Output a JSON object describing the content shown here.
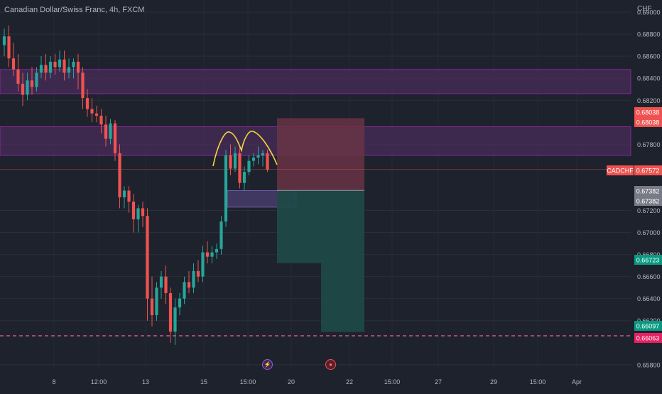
{
  "header": {
    "title": "Canadian Dollar/Swiss Franc, 4h, FXCM",
    "currency": "CHF"
  },
  "colors": {
    "background": "#1e222d",
    "bull": "#26a69a",
    "bear": "#ef5350",
    "zone_fill": "#4a2c5a",
    "zone_border": "#9c27b0",
    "pattern": "#f5d33f",
    "sl_fill": "#6b3446",
    "tp_fill": "#1e4a47"
  },
  "icons": {
    "event_1": "lightning-icon",
    "event_2": "flag-icon"
  },
  "chart_data": {
    "type": "candlestick",
    "title": "Canadian Dollar/Swiss Franc, 4h, FXCM",
    "ylabel": "CHF",
    "ylim": [
      0.6576,
      0.6911
    ],
    "y_ticks": [
      "0.69000",
      "0.68800",
      "0.68600",
      "0.68400",
      "0.68200",
      "0.67800",
      "0.67200",
      "0.67000",
      "0.66800",
      "0.66600",
      "0.66400",
      "0.66200",
      "0.65800"
    ],
    "x_ticks": [
      "8",
      "12:00",
      "13",
      "15",
      "15:00",
      "20",
      "22",
      "15:00",
      "27",
      "29",
      "15:00",
      "Apr"
    ],
    "price_labels": [
      {
        "value": "0.68038",
        "kind": "red"
      },
      {
        "value": "0.68038",
        "kind": "red"
      },
      {
        "value": "CADCHF",
        "kind": "red-tag"
      },
      {
        "value": "0.67572",
        "kind": "red"
      },
      {
        "value": "0.67382",
        "kind": "gray"
      },
      {
        "value": "0.67382",
        "kind": "gray"
      },
      {
        "value": "0.66723",
        "kind": "green"
      },
      {
        "value": "0.66097",
        "kind": "green"
      },
      {
        "value": "0.66063",
        "kind": "pink"
      }
    ],
    "symbol": "CADCHF",
    "last_price": 0.67572,
    "stop_loss": 0.68038,
    "entry": 0.67382,
    "partial_target": 0.66723,
    "target": 0.66097,
    "support_line": 0.66063,
    "zones": [
      {
        "from": 0.6826,
        "to": 0.6848
      },
      {
        "from": 0.677,
        "to": 0.6796
      },
      {
        "from": 0.6723,
        "to": 0.6738
      }
    ],
    "candles": [
      [
        0.687,
        0.6885,
        0.686,
        0.6878
      ],
      [
        0.6878,
        0.6888,
        0.685,
        0.6858
      ],
      [
        0.6858,
        0.6872,
        0.6842,
        0.6848
      ],
      [
        0.6848,
        0.6862,
        0.6828,
        0.6835
      ],
      [
        0.6835,
        0.6845,
        0.6815,
        0.6825
      ],
      [
        0.6825,
        0.6845,
        0.682,
        0.6838
      ],
      [
        0.6838,
        0.685,
        0.6825,
        0.6832
      ],
      [
        0.6832,
        0.685,
        0.6828,
        0.6845
      ],
      [
        0.6845,
        0.686,
        0.684,
        0.6852
      ],
      [
        0.6852,
        0.6862,
        0.6838,
        0.6845
      ],
      [
        0.6845,
        0.686,
        0.684,
        0.6855
      ],
      [
        0.6855,
        0.6862,
        0.6843,
        0.685
      ],
      [
        0.685,
        0.6865,
        0.6846,
        0.6857
      ],
      [
        0.6857,
        0.6865,
        0.6838,
        0.6845
      ],
      [
        0.6845,
        0.6858,
        0.684,
        0.685
      ],
      [
        0.685,
        0.6858,
        0.684,
        0.6855
      ],
      [
        0.6855,
        0.6862,
        0.683,
        0.6845
      ],
      [
        0.6845,
        0.685,
        0.6812,
        0.6822
      ],
      [
        0.6822,
        0.683,
        0.6805,
        0.6812
      ],
      [
        0.6812,
        0.6822,
        0.68,
        0.6808
      ],
      [
        0.6808,
        0.6815,
        0.68,
        0.6806
      ],
      [
        0.6806,
        0.6812,
        0.679,
        0.6798
      ],
      [
        0.6798,
        0.6806,
        0.6778,
        0.6785
      ],
      [
        0.6785,
        0.6803,
        0.678,
        0.6799
      ],
      [
        0.6799,
        0.6802,
        0.6765,
        0.6772
      ],
      [
        0.6772,
        0.678,
        0.6722,
        0.6732
      ],
      [
        0.6732,
        0.6742,
        0.6722,
        0.6738
      ],
      [
        0.6738,
        0.6742,
        0.6718,
        0.6728
      ],
      [
        0.6728,
        0.6735,
        0.67,
        0.6712
      ],
      [
        0.6712,
        0.6725,
        0.67,
        0.6722
      ],
      [
        0.6722,
        0.6728,
        0.6705,
        0.6715
      ],
      [
        0.6715,
        0.6722,
        0.662,
        0.664
      ],
      [
        0.664,
        0.666,
        0.6615,
        0.6625
      ],
      [
        0.6625,
        0.6655,
        0.662,
        0.665
      ],
      [
        0.665,
        0.6665,
        0.664,
        0.666
      ],
      [
        0.666,
        0.667,
        0.6635,
        0.6645
      ],
      [
        0.6645,
        0.665,
        0.66,
        0.661
      ],
      [
        0.661,
        0.664,
        0.6598,
        0.6632
      ],
      [
        0.6632,
        0.6645,
        0.6625,
        0.664
      ],
      [
        0.664,
        0.666,
        0.6635,
        0.6655
      ],
      [
        0.6655,
        0.6665,
        0.6645,
        0.665
      ],
      [
        0.665,
        0.6672,
        0.6645,
        0.6665
      ],
      [
        0.6665,
        0.6675,
        0.6655,
        0.666
      ],
      [
        0.666,
        0.6688,
        0.6655,
        0.6682
      ],
      [
        0.6682,
        0.6692,
        0.6672,
        0.6678
      ],
      [
        0.6678,
        0.6688,
        0.6672,
        0.6682
      ],
      [
        0.6682,
        0.669,
        0.6676,
        0.6685
      ],
      [
        0.6685,
        0.6715,
        0.668,
        0.671
      ],
      [
        0.671,
        0.6775,
        0.6705,
        0.677
      ],
      [
        0.677,
        0.678,
        0.6752,
        0.6758
      ],
      [
        0.6758,
        0.6778,
        0.6755,
        0.6772
      ],
      [
        0.6772,
        0.6778,
        0.674,
        0.6745
      ],
      [
        0.6745,
        0.676,
        0.6738,
        0.6755
      ],
      [
        0.6755,
        0.677,
        0.6752,
        0.6765
      ],
      [
        0.6765,
        0.6772,
        0.676,
        0.6768
      ],
      [
        0.6768,
        0.6778,
        0.6762,
        0.677
      ],
      [
        0.677,
        0.6775,
        0.676,
        0.6772
      ],
      [
        0.6772,
        0.6775,
        0.6755,
        0.6757
      ]
    ]
  }
}
